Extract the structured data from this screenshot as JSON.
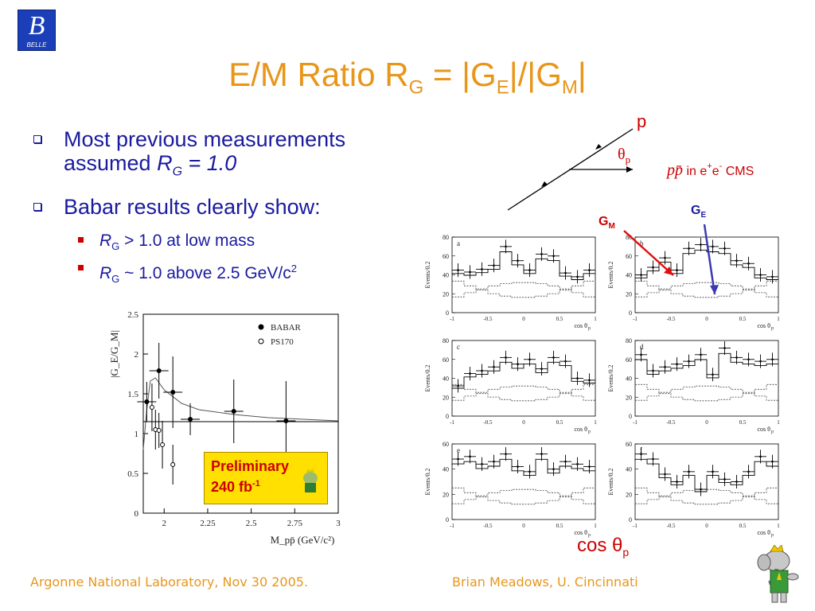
{
  "logo": {
    "glyph": "B",
    "text": "BELLE"
  },
  "title": {
    "lead": "E/M Ratio R",
    "r_sub": "G",
    "middle": " = |G",
    "e_sub": "E",
    "sep": "|/|G",
    "m_sub": "M",
    "tail": "|"
  },
  "bullets": {
    "b1_line1": "Most previous measurements",
    "b1_line2_lead": "assumed ",
    "b1_line2_var": "R",
    "b1_line2_sub": "G",
    "b1_line2_tail": " = 1.0",
    "b2": "Babar results clearly show:",
    "s1_var": "R",
    "s1_sub": "G",
    "s1_tail": " >  1.0 at low mass",
    "s2_var": "R",
    "s2_sub": "G",
    "s2_tail": " ~ 1.0 above 2.5 GeV/c",
    "s2_sup": "2"
  },
  "chart_data": [
    {
      "type": "scatter",
      "ylabel": "|G_E/G_M|",
      "xlabel": "M_pp̄ (GeV/c²)",
      "xlim": [
        1.88,
        3.0
      ],
      "ylim": [
        0,
        2.5
      ],
      "x_ticks": [
        "2",
        "2.25",
        "2.5",
        "2.75",
        "3"
      ],
      "y_ticks": [
        "0",
        "0.5",
        "1",
        "1.5",
        "2",
        "2.5"
      ],
      "legend": [
        "BABAR",
        "PS170"
      ],
      "legend_position": "top-right",
      "series": [
        {
          "name": "BABAR",
          "marker": "filled-circle",
          "x": [
            1.9,
            1.97,
            2.05,
            2.15,
            2.4,
            2.7
          ],
          "y": [
            1.4,
            1.79,
            1.52,
            1.18,
            1.28,
            1.16
          ],
          "yerr": [
            0.25,
            0.35,
            0.45,
            0.2,
            0.4,
            0.5
          ]
        },
        {
          "name": "PS170",
          "marker": "open-circle",
          "x": [
            1.93,
            1.95,
            1.97,
            1.99,
            2.05
          ],
          "y": [
            1.33,
            1.05,
            1.04,
            0.86,
            0.61
          ],
          "yerr": [
            0.3,
            0.25,
            0.22,
            0.3,
            0.25
          ]
        }
      ],
      "fit_curve": {
        "x": [
          1.88,
          1.9,
          1.92,
          1.95,
          2.0,
          2.1,
          2.2,
          2.4,
          2.6,
          2.8,
          3.0
        ],
        "y": [
          0.8,
          1.3,
          1.66,
          1.7,
          1.55,
          1.38,
          1.3,
          1.24,
          1.2,
          1.18,
          1.16
        ]
      },
      "constant_line": 1.15,
      "annotation": {
        "line1": "Preliminary",
        "line2": "240 fb",
        "sup": "-1"
      }
    },
    {
      "type": "line",
      "note": "6 panels of cos theta_p histograms",
      "panels": [
        {
          "label": "a",
          "ylim": [
            0,
            80
          ],
          "yticks": [
            "0",
            "20",
            "40",
            "60",
            "80"
          ],
          "points": [
            45,
            43,
            46,
            50,
            70,
            55,
            45,
            62,
            60,
            42,
            38,
            45
          ]
        },
        {
          "label": "b",
          "ylim": [
            0,
            80
          ],
          "yticks": [
            "0",
            "20",
            "40",
            "60",
            "80"
          ],
          "points": [
            40,
            48,
            58,
            45,
            68,
            72,
            70,
            68,
            55,
            52,
            40,
            38
          ]
        },
        {
          "label": "c",
          "ylim": [
            0,
            80
          ],
          "yticks": [
            "0",
            "20",
            "40",
            "60",
            "80"
          ],
          "points": [
            32,
            45,
            48,
            52,
            62,
            55,
            60,
            50,
            62,
            58,
            40,
            38
          ]
        },
        {
          "label": "d",
          "ylim": [
            0,
            80
          ],
          "yticks": [
            "0",
            "20",
            "40",
            "60",
            "80"
          ],
          "points": [
            65,
            48,
            52,
            55,
            58,
            65,
            44,
            72,
            62,
            60,
            58,
            60
          ]
        },
        {
          "label": "e",
          "ylim": [
            0,
            60
          ],
          "yticks": [
            "0",
            "20",
            "40",
            "60"
          ],
          "points": [
            48,
            50,
            44,
            46,
            52,
            42,
            38,
            52,
            40,
            46,
            44,
            42
          ]
        },
        {
          "label": "f",
          "ylim": [
            0,
            60
          ],
          "yticks": [
            "0",
            "20",
            "40",
            "60"
          ],
          "points": [
            52,
            48,
            36,
            30,
            38,
            24,
            38,
            32,
            30,
            38,
            50,
            46
          ]
        }
      ],
      "y_axis_label": "Events/0.2",
      "x_axis_label": "cos θ",
      "x_axis_sub": "p",
      "x_ticks": [
        "-1",
        "-0.5",
        "0",
        "0.5",
        "1"
      ]
    }
  ],
  "diagram": {
    "p_label": "p",
    "theta": "θ",
    "theta_sub": "p",
    "ppbar": "pp̄",
    "ppbar_tail": " in e",
    "plus": "+",
    "e2": "e",
    "minus": "-",
    "cms": " CMS"
  },
  "annotations": {
    "gm": "G",
    "gm_sub": "M",
    "ge": "G",
    "ge_sub": "E"
  },
  "cos_label": {
    "text": "cos θ",
    "sub": "p"
  },
  "footer": {
    "left": "Argonne National Laboratory, Nov 30 2005.",
    "right": "Brian Meadows, U. Cincinnati"
  },
  "colors": {
    "title": "#e8961a",
    "text": "#1a1aa0",
    "accent": "#cc0000",
    "prelim_bg": "#ffe000"
  }
}
